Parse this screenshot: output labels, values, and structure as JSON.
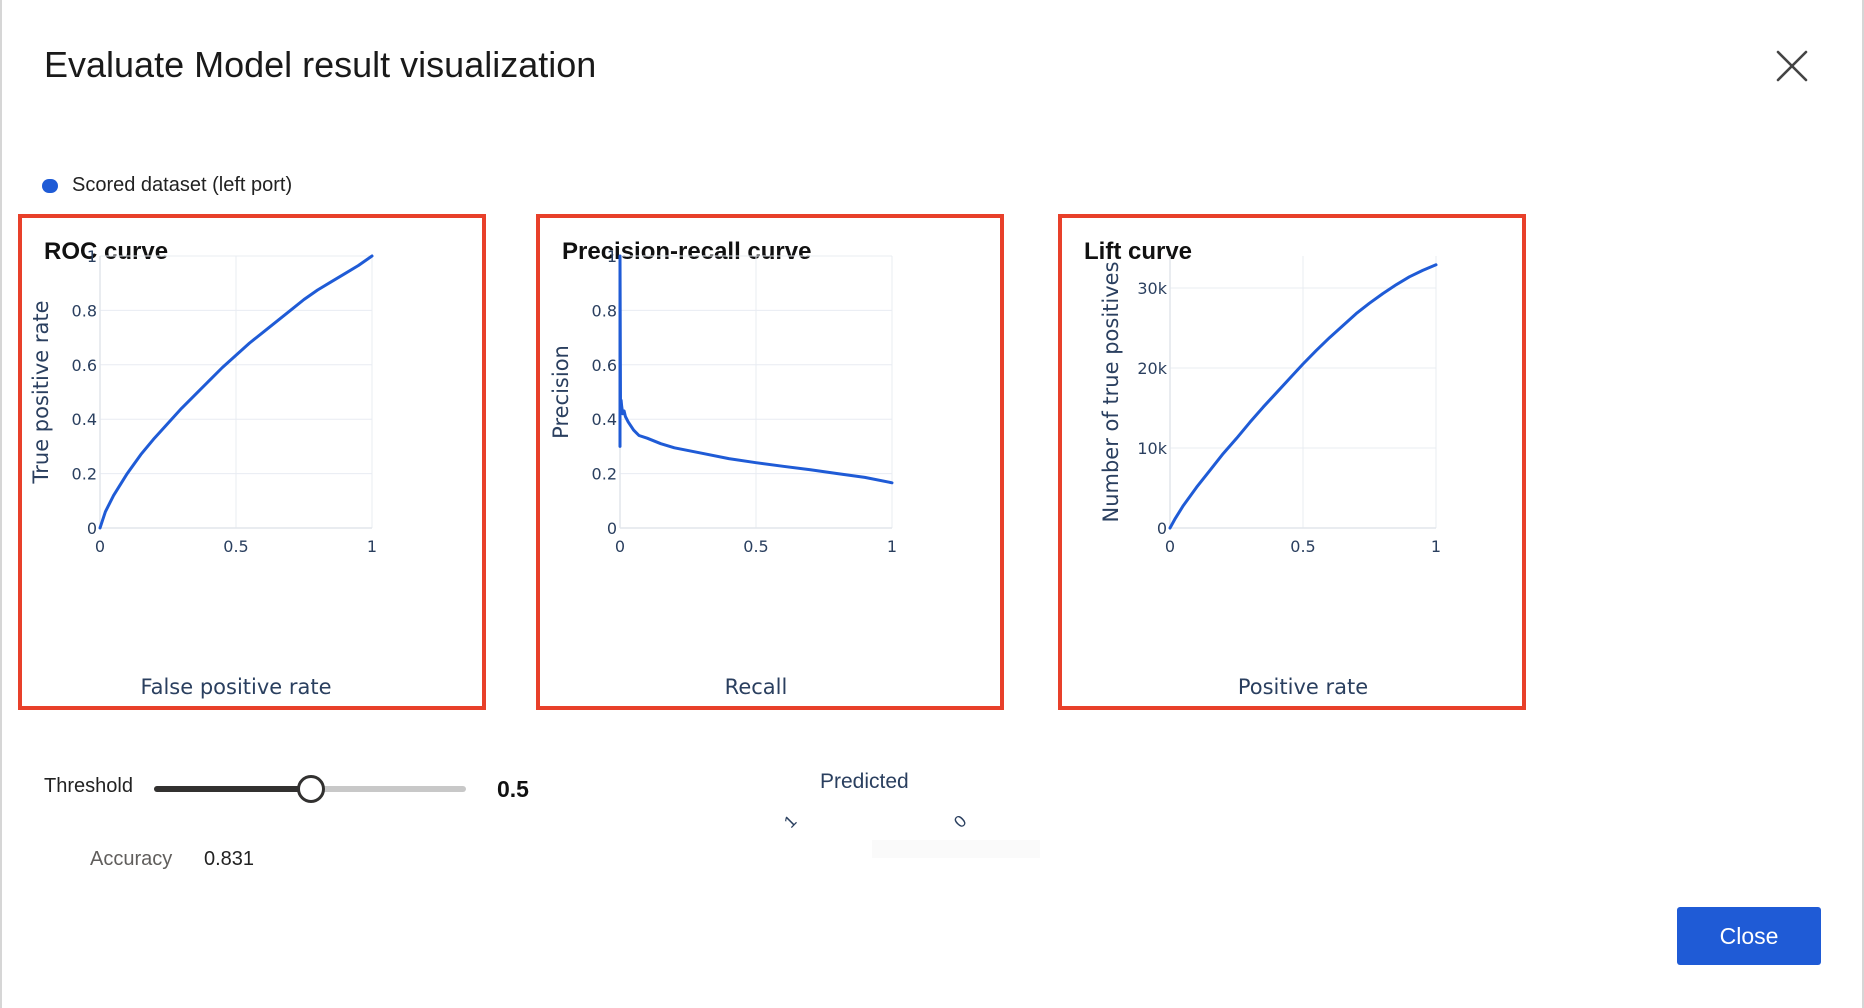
{
  "dialog": {
    "title": "Evaluate Model result visualization",
    "close_icon": "close-icon",
    "close_button_label": "Close"
  },
  "legend": {
    "label": "Scored dataset (left port)",
    "color": "#1f5bd6"
  },
  "colors": {
    "accent": "#1f5bd6",
    "line": "#1f5bd6",
    "highlight_border": "#e8402a",
    "grid": "#e8ecf2"
  },
  "panels": [
    {
      "title": "ROC curve",
      "chart_data": {
        "type": "line",
        "title": "ROC curve",
        "xlabel": "False positive rate",
        "ylabel": "True positive rate",
        "xlim": [
          0,
          1
        ],
        "ylim": [
          0,
          1
        ],
        "xticks": [
          "0",
          "0.5",
          "1"
        ],
        "yticks": [
          "0",
          "0.2",
          "0.4",
          "0.6",
          "0.8",
          "1"
        ],
        "grid": true,
        "x": [
          0,
          0.01,
          0.02,
          0.05,
          0.1,
          0.15,
          0.2,
          0.25,
          0.3,
          0.35,
          0.4,
          0.45,
          0.5,
          0.55,
          0.6,
          0.65,
          0.7,
          0.75,
          0.8,
          0.85,
          0.9,
          0.95,
          1.0
        ],
        "y": [
          0,
          0.03,
          0.06,
          0.12,
          0.2,
          0.27,
          0.33,
          0.385,
          0.44,
          0.49,
          0.54,
          0.59,
          0.635,
          0.68,
          0.72,
          0.76,
          0.8,
          0.84,
          0.875,
          0.905,
          0.935,
          0.965,
          1.0
        ]
      }
    },
    {
      "title": "Precision-recall curve",
      "chart_data": {
        "type": "line",
        "title": "Precision-recall curve",
        "xlabel": "Recall",
        "ylabel": "Precision",
        "xlim": [
          0,
          1
        ],
        "ylim": [
          0,
          1
        ],
        "xticks": [
          "0",
          "0.5",
          "1"
        ],
        "yticks": [
          "0",
          "0.2",
          "0.4",
          "0.6",
          "0.8",
          "1"
        ],
        "grid": true,
        "x": [
          0,
          0,
          0.002,
          0.004,
          0.006,
          0.01,
          0.015,
          0.02,
          0.03,
          0.05,
          0.07,
          0.1,
          0.15,
          0.2,
          0.3,
          0.4,
          0.5,
          0.6,
          0.7,
          0.8,
          0.9,
          1.0
        ],
        "y": [
          0.3,
          1.0,
          0.45,
          0.47,
          0.45,
          0.42,
          0.43,
          0.41,
          0.39,
          0.36,
          0.34,
          0.33,
          0.31,
          0.295,
          0.275,
          0.255,
          0.24,
          0.227,
          0.214,
          0.2,
          0.186,
          0.166
        ]
      }
    },
    {
      "title": "Lift curve",
      "chart_data": {
        "type": "line",
        "title": "Lift curve",
        "xlabel": "Positive rate",
        "ylabel": "Number of true positives",
        "xlim": [
          0,
          1
        ],
        "ylim": [
          0,
          34000
        ],
        "xticks": [
          "0",
          "0.5",
          "1"
        ],
        "yticks": [
          "0",
          "10k",
          "20k",
          "30k"
        ],
        "yticks_values": [
          0,
          10000,
          20000,
          30000
        ],
        "grid": true,
        "x": [
          0,
          0.02,
          0.05,
          0.1,
          0.15,
          0.2,
          0.25,
          0.3,
          0.35,
          0.4,
          0.45,
          0.5,
          0.55,
          0.6,
          0.65,
          0.7,
          0.75,
          0.8,
          0.85,
          0.9,
          0.95,
          1.0
        ],
        "y": [
          0,
          1200,
          2800,
          5100,
          7200,
          9300,
          11200,
          13200,
          15100,
          16900,
          18700,
          20500,
          22200,
          23800,
          25300,
          26800,
          28100,
          29300,
          30400,
          31400,
          32200,
          32900
        ]
      }
    }
  ],
  "threshold": {
    "label": "Threshold",
    "value": "0.5",
    "fraction": 0.5
  },
  "accuracy": {
    "label": "Accuracy",
    "value": "0.831"
  },
  "confusion_matrix": {
    "axis_label": "Predicted",
    "ticks": [
      "1",
      "0"
    ]
  }
}
